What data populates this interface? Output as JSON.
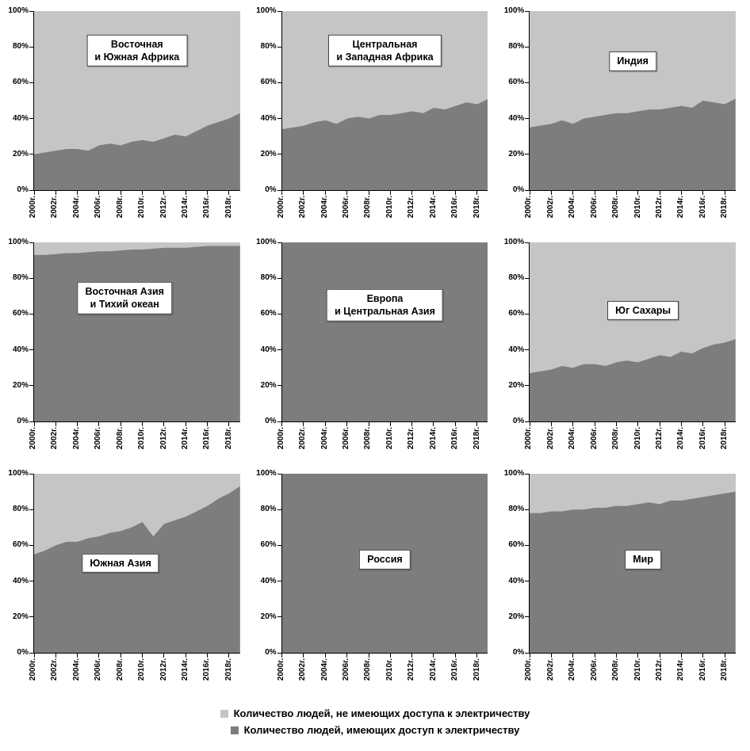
{
  "colors": {
    "access": "#7d7d7d",
    "no_access": "#c5c5c5"
  },
  "legend": {
    "position": "bottom",
    "no_access_label": "Количество людей, не имеющих доступа к электричеству",
    "access_label": "Количество людей, имеющих доступ к электричеству"
  },
  "axis": {
    "ylim": [
      0,
      100
    ],
    "y_ticks": [
      "0%",
      "20%",
      "40%",
      "60%",
      "80%",
      "100%"
    ],
    "x_tick_labels": [
      "2000г.",
      "2002г.",
      "2004г.",
      "2006г.",
      "2008г.",
      "2010г.",
      "2012г.",
      "2014г.",
      "2016г.",
      "2018г."
    ],
    "grid": false
  },
  "chart_data": [
    {
      "type": "area",
      "stacked_to_100": true,
      "title": "Восточная и Южная Африка",
      "title_lines": [
        "Восточная",
        "и Южная Африка"
      ],
      "label_pos": {
        "x_pct": 50,
        "y_pct": 22
      },
      "x_years": [
        2000,
        2001,
        2002,
        2003,
        2004,
        2005,
        2006,
        2007,
        2008,
        2009,
        2010,
        2011,
        2012,
        2013,
        2014,
        2015,
        2016,
        2017,
        2018,
        2019
      ],
      "series": [
        {
          "name": "Количество людей, имеющих доступ к электричеству",
          "values": [
            20,
            21,
            22,
            23,
            23,
            22,
            25,
            26,
            25,
            27,
            28,
            27,
            29,
            31,
            30,
            33,
            36,
            38,
            40,
            43
          ]
        },
        {
          "name": "Количество людей, не имеющих доступа к электричеству",
          "values": [
            80,
            79,
            78,
            77,
            77,
            78,
            75,
            74,
            75,
            73,
            72,
            73,
            71,
            69,
            70,
            67,
            64,
            62,
            60,
            57
          ]
        }
      ]
    },
    {
      "type": "area",
      "stacked_to_100": true,
      "title": "Центральная и Западная Африка",
      "title_lines": [
        "Центральная",
        "и Западная Африка"
      ],
      "label_pos": {
        "x_pct": 50,
        "y_pct": 22
      },
      "x_years": [
        2000,
        2001,
        2002,
        2003,
        2004,
        2005,
        2006,
        2007,
        2008,
        2009,
        2010,
        2011,
        2012,
        2013,
        2014,
        2015,
        2016,
        2017,
        2018,
        2019
      ],
      "series": [
        {
          "name": "Количество людей, имеющих доступ к электричеству",
          "values": [
            34,
            35,
            36,
            38,
            39,
            37,
            40,
            41,
            40,
            42,
            42,
            43,
            44,
            43,
            46,
            45,
            47,
            49,
            48,
            51
          ]
        },
        {
          "name": "Количество людей, не имеющих доступа к электричеству",
          "values": [
            66,
            65,
            64,
            62,
            61,
            63,
            60,
            59,
            60,
            58,
            58,
            57,
            56,
            57,
            54,
            55,
            53,
            51,
            52,
            49
          ]
        }
      ]
    },
    {
      "type": "area",
      "stacked_to_100": true,
      "title": "Индия",
      "title_lines": [
        "Индия"
      ],
      "label_pos": {
        "x_pct": 50,
        "y_pct": 28
      },
      "x_years": [
        2000,
        2001,
        2002,
        2003,
        2004,
        2005,
        2006,
        2007,
        2008,
        2009,
        2010,
        2011,
        2012,
        2013,
        2014,
        2015,
        2016,
        2017,
        2018,
        2019
      ],
      "series": [
        {
          "name": "Количество людей, имеющих доступ к электричеству",
          "values": [
            35,
            36,
            37,
            39,
            37,
            40,
            41,
            42,
            43,
            43,
            44,
            45,
            45,
            46,
            47,
            46,
            50,
            49,
            48,
            51
          ]
        },
        {
          "name": "Количество людей, не имеющих доступа к электричеству",
          "values": [
            65,
            64,
            63,
            61,
            63,
            60,
            59,
            58,
            57,
            57,
            56,
            55,
            55,
            54,
            53,
            54,
            50,
            51,
            52,
            49
          ]
        }
      ]
    },
    {
      "type": "area",
      "stacked_to_100": true,
      "title": "Восточная Азия и Тихий океан",
      "title_lines": [
        "Восточная Азия",
        "и Тихий океан"
      ],
      "label_pos": {
        "x_pct": 44,
        "y_pct": 31
      },
      "x_years": [
        2000,
        2001,
        2002,
        2003,
        2004,
        2005,
        2006,
        2007,
        2008,
        2009,
        2010,
        2011,
        2012,
        2013,
        2014,
        2015,
        2016,
        2017,
        2018,
        2019
      ],
      "series": [
        {
          "name": "Количество людей, имеющих доступ к электричеству",
          "values": [
            93,
            93,
            93.5,
            94,
            94,
            94.5,
            95,
            95,
            95.5,
            96,
            96,
            96.5,
            97,
            97,
            97,
            97.5,
            98,
            98,
            98,
            98
          ]
        },
        {
          "name": "Количество людей, не имеющих доступа к электричеству",
          "values": [
            7,
            7,
            6.5,
            6,
            6,
            5.5,
            5,
            5,
            4.5,
            4,
            4,
            3.5,
            3,
            3,
            3,
            2.5,
            2,
            2,
            2,
            2
          ]
        }
      ]
    },
    {
      "type": "area",
      "stacked_to_100": true,
      "title": "Европа и Центральная Азия",
      "title_lines": [
        "Европа",
        "и Центральная Азия"
      ],
      "label_pos": {
        "x_pct": 50,
        "y_pct": 35
      },
      "x_years": [
        2000,
        2001,
        2002,
        2003,
        2004,
        2005,
        2006,
        2007,
        2008,
        2009,
        2010,
        2011,
        2012,
        2013,
        2014,
        2015,
        2016,
        2017,
        2018,
        2019
      ],
      "series": [
        {
          "name": "Количество людей, имеющих доступ к электричеству",
          "values": [
            100,
            100,
            100,
            100,
            100,
            100,
            100,
            100,
            100,
            100,
            100,
            100,
            100,
            100,
            100,
            100,
            100,
            100,
            100,
            100
          ]
        },
        {
          "name": "Количество людей, не имеющих доступа к электричеству",
          "values": [
            0,
            0,
            0,
            0,
            0,
            0,
            0,
            0,
            0,
            0,
            0,
            0,
            0,
            0,
            0,
            0,
            0,
            0,
            0,
            0
          ]
        }
      ]
    },
    {
      "type": "area",
      "stacked_to_100": true,
      "title": "Юг Сахары",
      "title_lines": [
        "Юг Сахары"
      ],
      "label_pos": {
        "x_pct": 55,
        "y_pct": 38
      },
      "x_years": [
        2000,
        2001,
        2002,
        2003,
        2004,
        2005,
        2006,
        2007,
        2008,
        2009,
        2010,
        2011,
        2012,
        2013,
        2014,
        2015,
        2016,
        2017,
        2018,
        2019
      ],
      "series": [
        {
          "name": "Количество людей, имеющих доступ к электричеству",
          "values": [
            27,
            28,
            29,
            31,
            30,
            32,
            32,
            31,
            33,
            34,
            33,
            35,
            37,
            36,
            39,
            38,
            41,
            43,
            44,
            46
          ]
        },
        {
          "name": "Количество людей, не имеющих доступа к электричеству",
          "values": [
            73,
            72,
            71,
            69,
            70,
            68,
            68,
            69,
            67,
            66,
            67,
            65,
            63,
            64,
            61,
            62,
            59,
            57,
            56,
            54
          ]
        }
      ]
    },
    {
      "type": "area",
      "stacked_to_100": true,
      "title": "Южная Азия",
      "title_lines": [
        "Южная Азия"
      ],
      "label_pos": {
        "x_pct": 42,
        "y_pct": 50
      },
      "x_years": [
        2000,
        2001,
        2002,
        2003,
        2004,
        2005,
        2006,
        2007,
        2008,
        2009,
        2010,
        2011,
        2012,
        2013,
        2014,
        2015,
        2016,
        2017,
        2018,
        2019
      ],
      "series": [
        {
          "name": "Количество людей, имеющих доступ к электричеству",
          "values": [
            55,
            57,
            60,
            62,
            62,
            64,
            65,
            67,
            68,
            70,
            73,
            65,
            72,
            74,
            76,
            79,
            82,
            86,
            89,
            93
          ]
        },
        {
          "name": "Количество людей, не имеющих доступа к электричеству",
          "values": [
            45,
            43,
            40,
            38,
            38,
            36,
            35,
            33,
            32,
            30,
            27,
            35,
            28,
            26,
            24,
            21,
            18,
            14,
            11,
            7
          ]
        }
      ]
    },
    {
      "type": "area",
      "stacked_to_100": true,
      "title": "Россия",
      "title_lines": [
        "Россия"
      ],
      "label_pos": {
        "x_pct": 50,
        "y_pct": 48
      },
      "x_years": [
        2000,
        2001,
        2002,
        2003,
        2004,
        2005,
        2006,
        2007,
        2008,
        2009,
        2010,
        2011,
        2012,
        2013,
        2014,
        2015,
        2016,
        2017,
        2018,
        2019
      ],
      "series": [
        {
          "name": "Количество людей, имеющих доступ к электричеству",
          "values": [
            100,
            100,
            100,
            100,
            100,
            100,
            100,
            100,
            100,
            100,
            100,
            100,
            100,
            100,
            100,
            100,
            100,
            100,
            100,
            100
          ]
        },
        {
          "name": "Количество людей, не имеющих доступа к электричеству",
          "values": [
            0,
            0,
            0,
            0,
            0,
            0,
            0,
            0,
            0,
            0,
            0,
            0,
            0,
            0,
            0,
            0,
            0,
            0,
            0,
            0
          ]
        }
      ]
    },
    {
      "type": "area",
      "stacked_to_100": true,
      "title": "Мир",
      "title_lines": [
        "Мир"
      ],
      "label_pos": {
        "x_pct": 55,
        "y_pct": 48
      },
      "x_years": [
        2000,
        2001,
        2002,
        2003,
        2004,
        2005,
        2006,
        2007,
        2008,
        2009,
        2010,
        2011,
        2012,
        2013,
        2014,
        2015,
        2016,
        2017,
        2018,
        2019
      ],
      "series": [
        {
          "name": "Количество людей, имеющих доступ к электричеству",
          "values": [
            78,
            78,
            79,
            79,
            80,
            80,
            81,
            81,
            82,
            82,
            83,
            84,
            83,
            85,
            85,
            86,
            87,
            88,
            89,
            90
          ]
        },
        {
          "name": "Количество людей, не имеющих доступа к электричеству",
          "values": [
            22,
            22,
            21,
            21,
            20,
            20,
            19,
            19,
            18,
            18,
            17,
            16,
            17,
            15,
            15,
            14,
            13,
            12,
            11,
            10
          ]
        }
      ]
    }
  ]
}
